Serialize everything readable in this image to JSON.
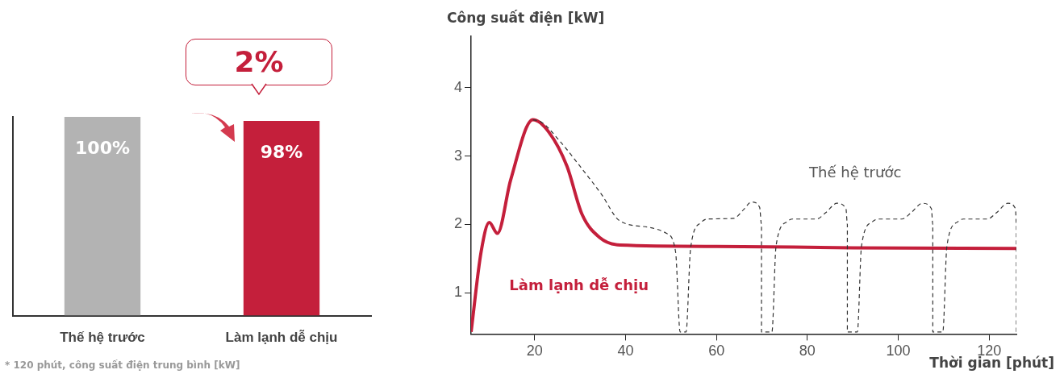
{
  "chart_data": [
    {
      "type": "bar",
      "categories": [
        "Thế hệ trước",
        "Làm lạnh dễ chịu"
      ],
      "values": [
        100,
        98
      ],
      "colors": [
        "#b3b3b3",
        "#c41f3b"
      ],
      "data_labels": true,
      "value_labels": [
        "100%",
        "98%"
      ],
      "annotations": [
        "2%",
        "* 120 phút, công suất điện trung bình [kW]"
      ]
    },
    {
      "type": "line",
      "ylabel": "Công suất điện [kW]",
      "xlabel": "Thời gian [phút]",
      "xlim": [
        6,
        126
      ],
      "ylim": [
        0.4,
        4.75
      ],
      "xticks": [
        20,
        40,
        60,
        80,
        100,
        120
      ],
      "yticks": [
        1,
        2,
        3,
        4
      ],
      "grid": false,
      "legend": false,
      "marker": "none",
      "series": [
        {
          "name": "Thế hệ trước",
          "color": "#333333",
          "line_style": "dashed",
          "x": [
            19.6,
            21.4,
            25.5,
            30.8,
            34.7,
            38.6,
            45,
            49,
            51,
            52,
            53.3,
            54.3,
            56.6,
            58,
            63.8,
            66,
            67.7,
            69.5,
            69.9,
            69.9,
            72.2,
            73.1,
            75.5,
            76.7,
            82,
            84,
            86.5,
            88.5,
            88.8,
            88.8,
            91,
            91.9,
            94.3,
            95.5,
            100.8,
            102.8,
            105.3,
            107.3,
            107.6,
            107.6,
            109.8,
            110.7,
            113.1,
            114.3,
            119.6,
            121.6,
            124.1,
            125.8,
            126,
            126
          ],
          "values": [
            3.53,
            3.5,
            3.22,
            2.78,
            2.44,
            2.06,
            1.96,
            1.87,
            1.6,
            0.43,
            0.43,
            1.65,
            2.03,
            2.08,
            2.09,
            2.22,
            2.33,
            2.25,
            2.0,
            0.43,
            0.43,
            1.68,
            2.04,
            2.08,
            2.08,
            2.17,
            2.31,
            2.23,
            2.0,
            0.43,
            0.43,
            1.68,
            2.04,
            2.08,
            2.08,
            2.17,
            2.31,
            2.23,
            2.0,
            0.43,
            0.43,
            1.68,
            2.04,
            2.08,
            2.08,
            2.17,
            2.31,
            2.23,
            2.0,
            0.43
          ]
        },
        {
          "name": "Làm lạnh dễ chịu",
          "color": "#c41f3b",
          "line_style": "solid",
          "x": [
            6,
            8.2,
            10,
            11.8,
            14.7,
            19.6,
            23.1,
            27.1,
            30.4,
            34.3,
            38.8,
            60,
            90,
            126
          ],
          "values": [
            0.43,
            1.6,
            2.03,
            1.87,
            2.65,
            3.53,
            3.35,
            2.85,
            2.15,
            1.81,
            1.7,
            1.68,
            1.66,
            1.65
          ]
        }
      ]
    }
  ]
}
